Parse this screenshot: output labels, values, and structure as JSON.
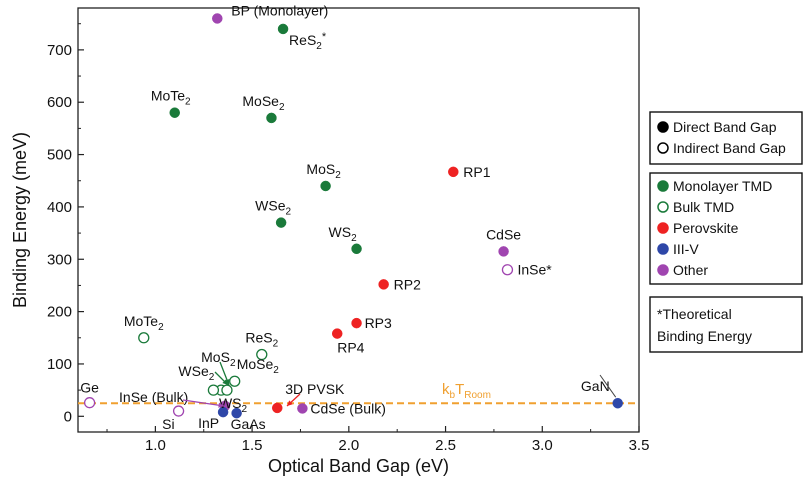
{
  "chart_data": {
    "type": "scatter",
    "xlabel": "Optical Band Gap (eV)",
    "ylabel": "Binding Energy (meV)",
    "xlim": [
      0.6,
      3.5
    ],
    "ylim": [
      -30,
      780
    ],
    "xticks": [
      "1.0",
      "1.5",
      "2.0",
      "2.5",
      "3.0",
      "3.5"
    ],
    "xtick_values": [
      1.0,
      1.5,
      2.0,
      2.5,
      3.0,
      3.5
    ],
    "yticks": [
      "0",
      "100",
      "200",
      "300",
      "400",
      "500",
      "600",
      "700"
    ],
    "ytick_values": [
      0,
      100,
      200,
      300,
      400,
      500,
      600,
      700
    ],
    "colors": {
      "monolayer_tmd": "#1a7a3a",
      "bulk_tmd": "#1a7a3a",
      "perovskite": "#ee2222",
      "iii_v": "#2e47a8",
      "other": "#a045b0",
      "kbt_line": "#f0a030"
    },
    "reference_line": {
      "y": 25,
      "label_main": "k",
      "label_sub_b": "b",
      "label_T": "T",
      "label_sub_room": "Room"
    },
    "points": [
      {
        "label": "BP (Monolayer)",
        "x": 1.32,
        "y": 760,
        "group": "other",
        "filled": true
      },
      {
        "label": "ReS",
        "sub": "2",
        "sup": "*",
        "x": 1.66,
        "y": 740,
        "group": "monolayer_tmd",
        "filled": true
      },
      {
        "label": "MoTe",
        "sub": "2",
        "x": 1.1,
        "y": 580,
        "group": "monolayer_tmd",
        "filled": true
      },
      {
        "label": "MoSe",
        "sub": "2",
        "x": 1.6,
        "y": 570,
        "group": "monolayer_tmd",
        "filled": true
      },
      {
        "label": "MoS",
        "sub": "2",
        "x": 1.88,
        "y": 440,
        "group": "monolayer_tmd",
        "filled": true
      },
      {
        "label": "WSe",
        "sub": "2",
        "x": 1.65,
        "y": 370,
        "group": "monolayer_tmd",
        "filled": true
      },
      {
        "label": "WS",
        "sub": "2",
        "x": 2.04,
        "y": 320,
        "group": "monolayer_tmd",
        "filled": true
      },
      {
        "label": "RP1",
        "x": 2.54,
        "y": 467,
        "group": "perovskite",
        "filled": true
      },
      {
        "label": "RP2",
        "x": 2.18,
        "y": 252,
        "group": "perovskite",
        "filled": true
      },
      {
        "label": "RP3",
        "x": 2.04,
        "y": 178,
        "group": "perovskite",
        "filled": true
      },
      {
        "label": "RP4",
        "x": 1.94,
        "y": 158,
        "group": "perovskite",
        "filled": true
      },
      {
        "label": "CdSe",
        "x": 2.8,
        "y": 315,
        "group": "other",
        "filled": true
      },
      {
        "label": "InSe*",
        "x": 2.82,
        "y": 280,
        "group": "other",
        "filled": false
      },
      {
        "label": "MoTe",
        "sub": "2",
        "x": 0.94,
        "y": 150,
        "group": "bulk_tmd",
        "filled": false
      },
      {
        "label": "ReS",
        "sub": "2",
        "x": 1.55,
        "y": 118,
        "group": "bulk_tmd",
        "filled": false
      },
      {
        "label": "MoS",
        "sub": "2",
        "x": 1.34,
        "y": 50,
        "group": "bulk_tmd",
        "filled": false
      },
      {
        "label": "WSe",
        "sub": "2",
        "x": 1.3,
        "y": 50,
        "group": "bulk_tmd",
        "filled": false
      },
      {
        "label": "MoSe",
        "sub": "2",
        "x": 1.41,
        "y": 67,
        "group": "bulk_tmd",
        "filled": false
      },
      {
        "label": "WS",
        "sub": "2",
        "x": 1.37,
        "y": 50,
        "group": "bulk_tmd",
        "filled": false
      },
      {
        "label": "Ge",
        "x": 0.66,
        "y": 26,
        "group": "other",
        "filled": false
      },
      {
        "label": "Si",
        "x": 1.12,
        "y": 10,
        "group": "other",
        "filled": false
      },
      {
        "label": "InSe (Bulk)",
        "x": 1.36,
        "y": 20,
        "group": "other",
        "filled": true
      },
      {
        "label": "InP",
        "x": 1.35,
        "y": 8,
        "group": "iii_v",
        "filled": true
      },
      {
        "label": "GaAs",
        "x": 1.42,
        "y": 6,
        "group": "iii_v",
        "filled": true
      },
      {
        "label": "3D PVSK",
        "x": 1.63,
        "y": 16,
        "group": "perovskite",
        "filled": true
      },
      {
        "label": "CdSe (Bulk)",
        "x": 1.76,
        "y": 15,
        "group": "other",
        "filled": true
      },
      {
        "label": "GaN",
        "x": 3.39,
        "y": 25,
        "group": "iii_v",
        "filled": true
      }
    ],
    "legend": {
      "gap_types": [
        {
          "text": "Direct Band Gap",
          "filled": true
        },
        {
          "text": "Indirect Band Gap",
          "filled": false
        }
      ],
      "groups": [
        {
          "text": "Monolayer TMD",
          "group": "monolayer_tmd",
          "filled": true
        },
        {
          "text": "Bulk TMD",
          "group": "bulk_tmd",
          "filled": false
        },
        {
          "text": "Perovskite",
          "group": "perovskite",
          "filled": true
        },
        {
          "text": "III-V",
          "group": "iii_v",
          "filled": true
        },
        {
          "text": "Other",
          "group": "other",
          "filled": true
        }
      ],
      "note_line1": "*Theoretical",
      "note_line2": "Binding Energy"
    }
  }
}
